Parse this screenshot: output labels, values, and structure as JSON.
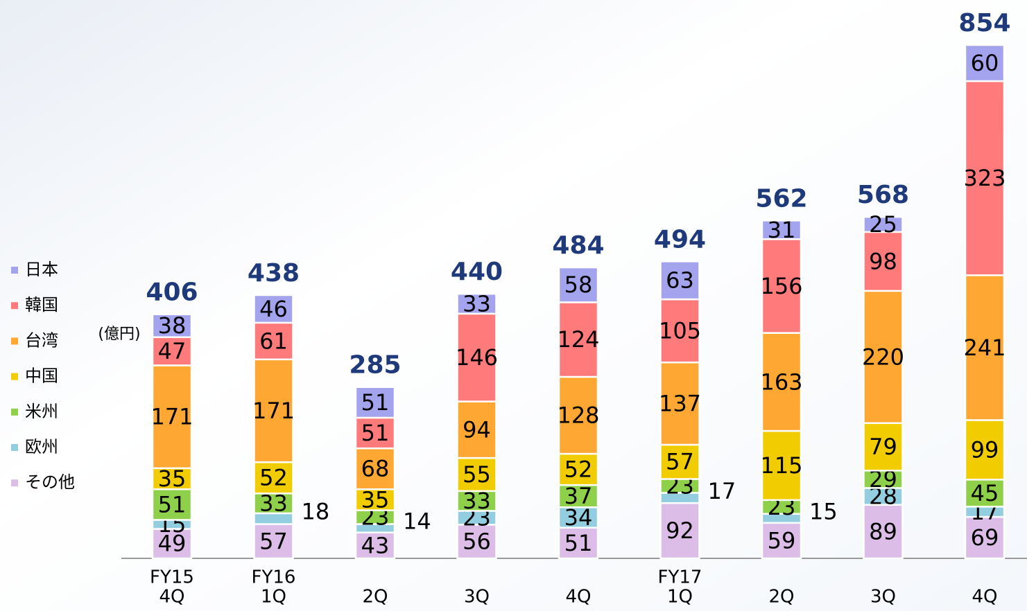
{
  "chart_data": {
    "type": "bar",
    "stacked": true,
    "unit_label": "(億円)",
    "categories": [
      [
        "FY15",
        "4Q"
      ],
      [
        "FY16",
        "1Q"
      ],
      [
        "2Q"
      ],
      [
        "3Q"
      ],
      [
        "4Q"
      ],
      [
        "FY17",
        "1Q"
      ],
      [
        "2Q"
      ],
      [
        "3Q"
      ],
      [
        "4Q"
      ]
    ],
    "series": [
      {
        "name": "その他",
        "color": "#dcbde8",
        "values": [
          49,
          57,
          43,
          56,
          51,
          92,
          59,
          89,
          69
        ]
      },
      {
        "name": "欧州",
        "color": "#92cde0",
        "values": [
          15,
          18,
          14,
          23,
          34,
          17,
          15,
          28,
          17
        ]
      },
      {
        "name": "米州",
        "color": "#8ed04a",
        "values": [
          51,
          33,
          23,
          33,
          37,
          23,
          23,
          29,
          45
        ]
      },
      {
        "name": "中国",
        "color": "#f0cc00",
        "values": [
          35,
          52,
          35,
          55,
          52,
          57,
          115,
          79,
          99
        ]
      },
      {
        "name": "台湾",
        "color": "#ffa733",
        "values": [
          171,
          171,
          68,
          94,
          128,
          137,
          163,
          220,
          241
        ]
      },
      {
        "name": "韓国",
        "color": "#ff7b7b",
        "values": [
          47,
          61,
          51,
          146,
          124,
          105,
          156,
          98,
          323
        ]
      },
      {
        "name": "日本",
        "color": "#a3a3ee",
        "values": [
          38,
          46,
          51,
          33,
          58,
          63,
          31,
          25,
          60
        ]
      }
    ],
    "totals": [
      406,
      438,
      285,
      440,
      484,
      494,
      562,
      568,
      854
    ],
    "legend": "left"
  }
}
